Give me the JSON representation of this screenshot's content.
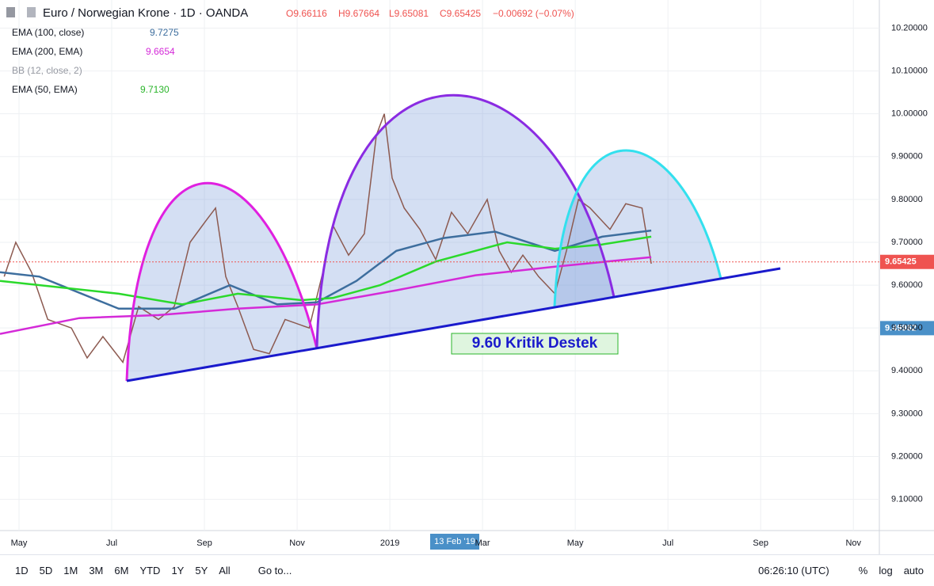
{
  "header": {
    "symbol": "Euro / Norwegian Krone · 1D · OANDA",
    "open": "O9.66116",
    "high": "H9.67664",
    "low": "L9.65081",
    "close": "C9.65425",
    "change": "−0.00692 (−0.07%)"
  },
  "legend": [
    {
      "label": "EMA (100, close)",
      "value": "9.7275"
    },
    {
      "label": "EMA (200, EMA)",
      "value": "9.6654"
    },
    {
      "label": "BB (12, close, 2)"
    },
    {
      "label": "EMA (50, EMA)",
      "value": "9.7130"
    }
  ],
  "chart_data": {
    "type": "line",
    "x_label_hover": "13 Feb '19",
    "annotation": "9.60 Kritik Destek",
    "xlim": [
      -0.41,
      18.56
    ],
    "xticks": [
      {
        "value": 0,
        "label": "May"
      },
      {
        "value": 2,
        "label": "Jul"
      },
      {
        "value": 4,
        "label": "Sep"
      },
      {
        "value": 6,
        "label": "Nov"
      },
      {
        "value": 8,
        "label": "2019"
      },
      {
        "value": 10,
        "label": "Mar"
      },
      {
        "value": 12,
        "label": "May"
      },
      {
        "value": 14,
        "label": "Jul"
      },
      {
        "value": 16,
        "label": "Sep"
      },
      {
        "value": 18,
        "label": "Nov"
      }
    ],
    "ylim": [
      9.0271,
      10.2656
    ],
    "yticks": [
      {
        "value": 9.1,
        "label": "9.10000"
      },
      {
        "value": 9.2,
        "label": "9.20000"
      },
      {
        "value": 9.3,
        "label": "9.30000"
      },
      {
        "value": 9.4,
        "label": "9.40000"
      },
      {
        "value": 9.5,
        "label": "9.50000"
      },
      {
        "value": 9.6,
        "label": "9.60000"
      },
      {
        "value": 9.7,
        "label": "9.70000"
      },
      {
        "value": 9.8,
        "label": "9.80000"
      },
      {
        "value": 9.9,
        "label": "9.90000"
      },
      {
        "value": 10,
        "label": "10.00000"
      },
      {
        "value": 10.1,
        "label": "10.10000"
      },
      {
        "value": 10.2,
        "label": "10.20000"
      }
    ],
    "price_labels": [
      {
        "value": 9.65425,
        "label": "9.65425",
        "color": "#ef5350"
      },
      {
        "value": 9.49962,
        "label": "9.49962",
        "color": "#4a90c8"
      }
    ],
    "series": [
      {
        "name": "EUR/NOK",
        "color": "#8c5a50",
        "x": [
          -0.32,
          -0.07,
          0.27,
          0.62,
          1.13,
          1.47,
          1.81,
          2.24,
          2.58,
          3.01,
          3.35,
          3.69,
          4.03,
          4.24,
          4.46,
          4.72,
          5.06,
          5.4,
          5.74,
          6.26,
          6.6,
          6.77,
          7.11,
          7.45,
          7.71,
          7.88,
          8.05,
          8.31,
          8.65,
          8.99,
          9.33,
          9.68,
          10.1,
          10.36,
          10.62,
          10.87,
          11.21,
          11.56,
          11.81,
          12.07,
          12.32,
          12.75,
          13.09,
          13.44,
          13.64
        ],
        "values": [
          9.62,
          9.7,
          9.63,
          9.52,
          9.5,
          9.43,
          9.48,
          9.42,
          9.55,
          9.52,
          9.55,
          9.7,
          9.75,
          9.78,
          9.62,
          9.55,
          9.45,
          9.44,
          9.52,
          9.5,
          9.65,
          9.74,
          9.67,
          9.72,
          9.95,
          10.0,
          9.85,
          9.78,
          9.73,
          9.66,
          9.77,
          9.72,
          9.8,
          9.68,
          9.63,
          9.67,
          9.62,
          9.58,
          9.68,
          9.8,
          9.78,
          9.73,
          9.79,
          9.78,
          9.65
        ]
      },
      {
        "name": "EMA 100",
        "color": "#3d6e9e",
        "x": [
          -0.41,
          0.44,
          2.15,
          3.35,
          4.55,
          5.57,
          6.43,
          7.28,
          8.14,
          9.16,
          10.27,
          11.56,
          12.58,
          13.64
        ],
        "values": [
          9.63,
          9.62,
          9.545,
          9.545,
          9.6,
          9.555,
          9.56,
          9.61,
          9.68,
          9.71,
          9.725,
          9.68,
          9.713,
          9.7275
        ]
      },
      {
        "name": "EMA 200",
        "color": "#d42ad8",
        "x": [
          -0.41,
          1.3,
          3.01,
          4.72,
          6.43,
          8.14,
          9.85,
          11.56,
          13.64
        ],
        "values": [
          9.486,
          9.523,
          9.53,
          9.545,
          9.555,
          9.588,
          9.623,
          9.643,
          9.6654
        ]
      },
      {
        "name": "EMA 50",
        "color": "#2bd92b",
        "x": [
          -0.41,
          2.15,
          3.52,
          4.72,
          6.09,
          6.77,
          7.79,
          8.99,
          10.53,
          11.56,
          12.58,
          13.64
        ],
        "values": [
          9.61,
          9.58,
          9.555,
          9.58,
          9.565,
          9.57,
          9.6,
          9.655,
          9.7,
          9.685,
          9.695,
          9.713
        ]
      }
    ]
  },
  "toolbar": {
    "ranges": [
      "1D",
      "5D",
      "1M",
      "3M",
      "6M",
      "YTD",
      "1Y",
      "5Y",
      "All"
    ],
    "goto": "Go to...",
    "time": "06:26:10 (UTC)",
    "options": [
      "%",
      "log",
      "auto"
    ]
  }
}
